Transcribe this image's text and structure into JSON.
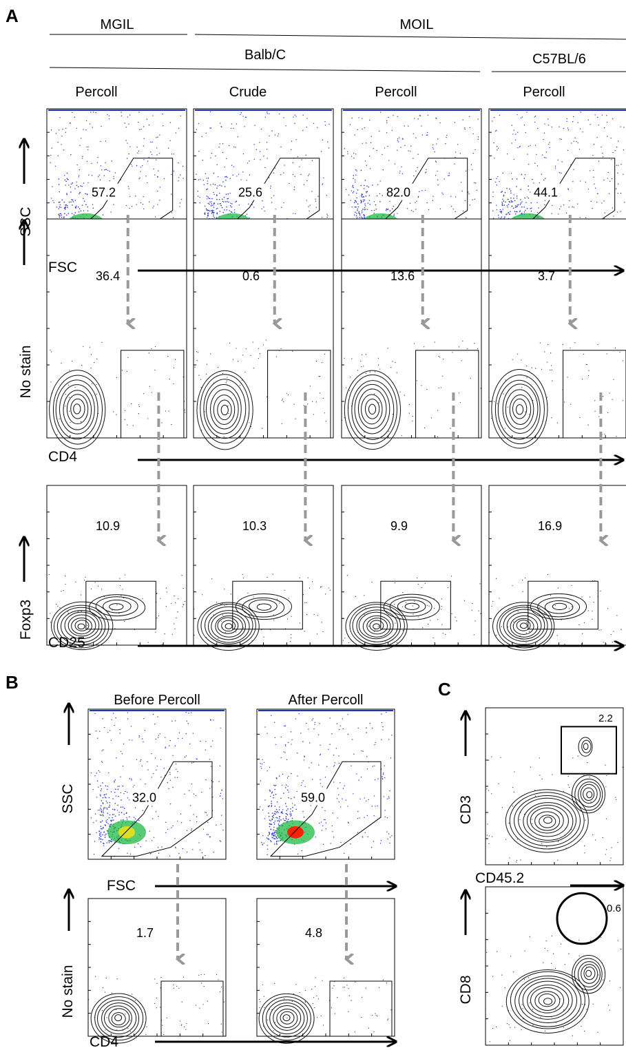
{
  "panels": {
    "a": "A",
    "b": "B",
    "c": "C"
  },
  "panel_a": {
    "headers": {
      "mgil": "MGIL",
      "moil": "MOIL",
      "balbc": "Balb/C",
      "c57": "C57BL/6",
      "col_labels": [
        "Percoll",
        "Crude",
        "Percoll",
        "Percoll"
      ]
    },
    "rows": [
      {
        "ylabel": "SSC",
        "xlabel": "FSC",
        "plot": "density",
        "values": [
          "57.2",
          "25.6",
          "82.0",
          "44.1"
        ]
      },
      {
        "ylabel": "No stain",
        "xlabel": "CD4",
        "plot": "contour",
        "values": [
          "36.4",
          "0.6",
          "13.6",
          "3.7"
        ]
      },
      {
        "ylabel": "Foxp3",
        "xlabel": "CD25",
        "plot": "contour",
        "values": [
          "10.9",
          "10.3",
          "9.9",
          "16.9"
        ]
      }
    ]
  },
  "panel_b": {
    "col_labels": [
      "Before Percoll",
      "After Percoll"
    ],
    "rows": [
      {
        "ylabel": "SSC",
        "xlabel": "FSC",
        "values": [
          "32.0",
          "59.0"
        ]
      },
      {
        "ylabel": "No stain",
        "xlabel": "CD4",
        "values": [
          "1.7",
          "4.8"
        ]
      }
    ]
  },
  "panel_c": {
    "plots": [
      {
        "ylabel": "CD3",
        "xlabel": "CD45.2",
        "value": "2.2"
      },
      {
        "ylabel": "CD8",
        "xlabel": "CD45.2",
        "value": "0.6"
      }
    ]
  },
  "colors": {
    "arrow_gray": "#999999",
    "density_low": "#2233cc",
    "density_mid": "#22bb44",
    "density_high": "#ff2200",
    "contour": "#111111"
  }
}
